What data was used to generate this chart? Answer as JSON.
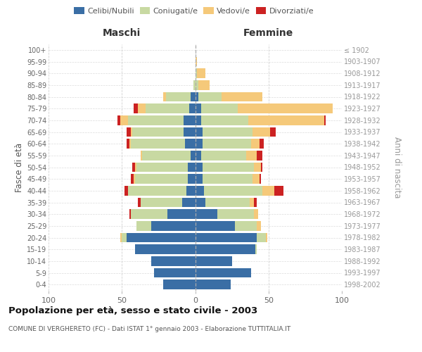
{
  "age_groups_bottom_to_top": [
    "0-4",
    "5-9",
    "10-14",
    "15-19",
    "20-24",
    "25-29",
    "30-34",
    "35-39",
    "40-44",
    "45-49",
    "50-54",
    "55-59",
    "60-64",
    "65-69",
    "70-74",
    "75-79",
    "80-84",
    "85-89",
    "90-94",
    "95-99",
    "100+"
  ],
  "birth_years_bottom_to_top": [
    "1998-2002",
    "1993-1997",
    "1988-1992",
    "1983-1987",
    "1978-1982",
    "1973-1977",
    "1968-1972",
    "1963-1967",
    "1958-1962",
    "1953-1957",
    "1948-1952",
    "1943-1947",
    "1938-1942",
    "1933-1937",
    "1928-1932",
    "1923-1927",
    "1918-1922",
    "1913-1917",
    "1908-1912",
    "1903-1907",
    "≤ 1902"
  ],
  "maschi": {
    "celibi": [
      22,
      28,
      30,
      41,
      47,
      30,
      19,
      9,
      6,
      5,
      5,
      3,
      7,
      8,
      8,
      4,
      3,
      0,
      0,
      0,
      0
    ],
    "coniugati": [
      0,
      0,
      0,
      0,
      3,
      10,
      25,
      28,
      40,
      36,
      35,
      33,
      37,
      35,
      38,
      30,
      17,
      1,
      0,
      0,
      0
    ],
    "vedovi": [
      0,
      0,
      0,
      0,
      1,
      0,
      0,
      0,
      0,
      1,
      1,
      1,
      1,
      1,
      5,
      5,
      2,
      0,
      0,
      0,
      0
    ],
    "divorziati": [
      0,
      0,
      0,
      0,
      0,
      0,
      1,
      2,
      2,
      2,
      2,
      0,
      2,
      3,
      2,
      3,
      0,
      0,
      0,
      0,
      0
    ]
  },
  "femmine": {
    "nubili": [
      24,
      38,
      25,
      41,
      42,
      27,
      15,
      7,
      6,
      5,
      5,
      4,
      5,
      5,
      4,
      4,
      2,
      0,
      0,
      0,
      0
    ],
    "coniugate": [
      0,
      0,
      0,
      1,
      6,
      15,
      25,
      30,
      40,
      34,
      35,
      31,
      33,
      34,
      32,
      25,
      16,
      2,
      1,
      0,
      0
    ],
    "vedove": [
      0,
      0,
      0,
      0,
      1,
      3,
      3,
      3,
      8,
      5,
      5,
      7,
      6,
      12,
      52,
      65,
      28,
      8,
      6,
      1,
      0
    ],
    "divorziate": [
      0,
      0,
      0,
      0,
      0,
      0,
      0,
      2,
      6,
      1,
      1,
      4,
      3,
      4,
      1,
      0,
      0,
      0,
      0,
      0,
      0
    ]
  },
  "colors": {
    "celibi": "#3a6ea5",
    "coniugati": "#c8d9a2",
    "vedovi": "#f5c97a",
    "divorziati": "#cc2222"
  },
  "xlim": 100,
  "title": "Popolazione per età, sesso e stato civile - 2003",
  "subtitle": "COMUNE DI VERGHERETO (FC) - Dati ISTAT 1° gennaio 2003 - Elaborazione TUTTITALIA.IT",
  "ylabel_left": "Fasce di età",
  "ylabel_right": "Anni di nascita",
  "label_maschi": "Maschi",
  "label_femmine": "Femmine",
  "legend_labels": [
    "Celibi/Nubili",
    "Coniugati/e",
    "Vedovi/e",
    "Divorziati/e"
  ],
  "bg_color": "#ffffff",
  "grid_color": "#cccccc"
}
